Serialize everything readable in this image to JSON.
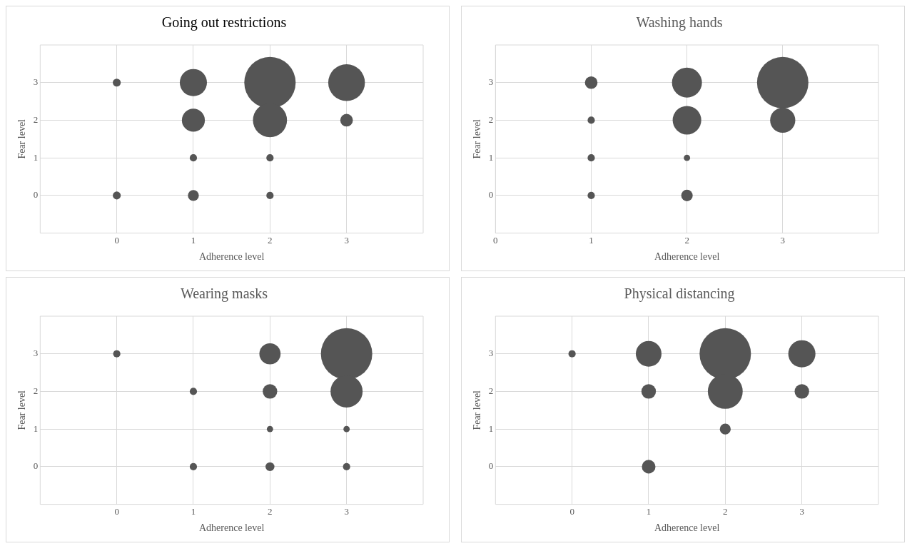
{
  "chart_data": [
    {
      "type": "bubble",
      "title": "Going out restrictions",
      "xlabel": "Adherence level",
      "ylabel": "Fear level",
      "xlim": [
        -1,
        4
      ],
      "ylim": [
        -1,
        4
      ],
      "xticks": [
        0,
        1,
        2,
        3
      ],
      "yticks": [
        0,
        1,
        2,
        3
      ],
      "grid": true,
      "series": [
        {
          "color": "#555555",
          "x": [
            0,
            0,
            1,
            1,
            1,
            1,
            2,
            2,
            2,
            2,
            3,
            3
          ],
          "values": [
            3,
            0,
            3,
            2,
            1,
            0,
            3,
            2,
            1,
            0,
            3,
            2
          ],
          "sizes": [
            0.024,
            0.024,
            0.28,
            0.2,
            0.02,
            0.045,
            1,
            0.44,
            0.02,
            0.02,
            0.51,
            0.06
          ]
        }
      ]
    },
    {
      "type": "bubble",
      "title": "Washing hands",
      "xlabel": "Adherence level",
      "ylabel": "Fear level",
      "xlim": [
        0,
        4
      ],
      "ylim": [
        -1,
        4
      ],
      "xticks": [
        0,
        1,
        2,
        3
      ],
      "yticks": [
        0,
        1,
        2,
        3
      ],
      "grid": true,
      "series": [
        {
          "color": "#555555",
          "x": [
            1,
            1,
            1,
            1,
            2,
            2,
            2,
            2,
            3,
            3
          ],
          "values": [
            3,
            2,
            1,
            0,
            3,
            2,
            1,
            0,
            3,
            2
          ],
          "sizes": [
            0.06,
            0.02,
            0.02,
            0.02,
            0.34,
            0.31,
            0.015,
            0.05,
            1,
            0.24
          ]
        }
      ]
    },
    {
      "type": "bubble",
      "title": "Wearing masks",
      "xlabel": "Adherence level",
      "ylabel": "Fear level",
      "xlim": [
        -1,
        4
      ],
      "ylim": [
        -1,
        4
      ],
      "xticks": [
        0,
        1,
        2,
        3
      ],
      "yticks": [
        0,
        1,
        2,
        3
      ],
      "grid": true,
      "series": [
        {
          "color": "#555555",
          "x": [
            0,
            1,
            1,
            2,
            2,
            2,
            2,
            3,
            3,
            3,
            3
          ],
          "values": [
            3,
            2,
            0,
            3,
            2,
            1,
            0,
            3,
            2,
            1,
            0
          ],
          "sizes": [
            0.02,
            0.02,
            0.02,
            0.17,
            0.08,
            0.015,
            0.03,
            1,
            0.39,
            0.015,
            0.02
          ]
        }
      ]
    },
    {
      "type": "bubble",
      "title": "Physical distancing",
      "xlabel": "Adherence level",
      "ylabel": "Fear level",
      "xlim": [
        -1,
        4
      ],
      "ylim": [
        -1,
        4
      ],
      "xticks": [
        0,
        1,
        2,
        3
      ],
      "yticks": [
        0,
        1,
        2,
        3
      ],
      "grid": true,
      "series": [
        {
          "color": "#555555",
          "x": [
            0,
            1,
            1,
            1,
            2,
            2,
            2,
            3,
            3
          ],
          "values": [
            3,
            3,
            2,
            0,
            3,
            2,
            1,
            3,
            2
          ],
          "sizes": [
            0.02,
            0.25,
            0.08,
            0.07,
            1,
            0.46,
            0.045,
            0.28,
            0.08
          ]
        }
      ]
    }
  ]
}
